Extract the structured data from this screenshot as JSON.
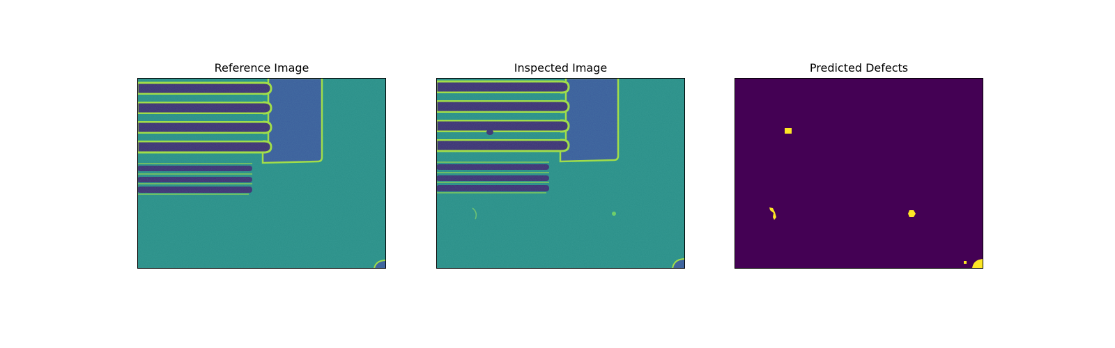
{
  "panels": [
    {
      "title": "Reference Image"
    },
    {
      "title": "Inspected Image"
    },
    {
      "title": "Predicted Defects"
    }
  ],
  "colors": {
    "substrate": "#2a9088",
    "pad": "#3b5a9a",
    "finger_dark": "#3d2f72",
    "edge": "#a6e03e",
    "mask_bg": "#440154",
    "mask_defect": "#fde725"
  }
}
